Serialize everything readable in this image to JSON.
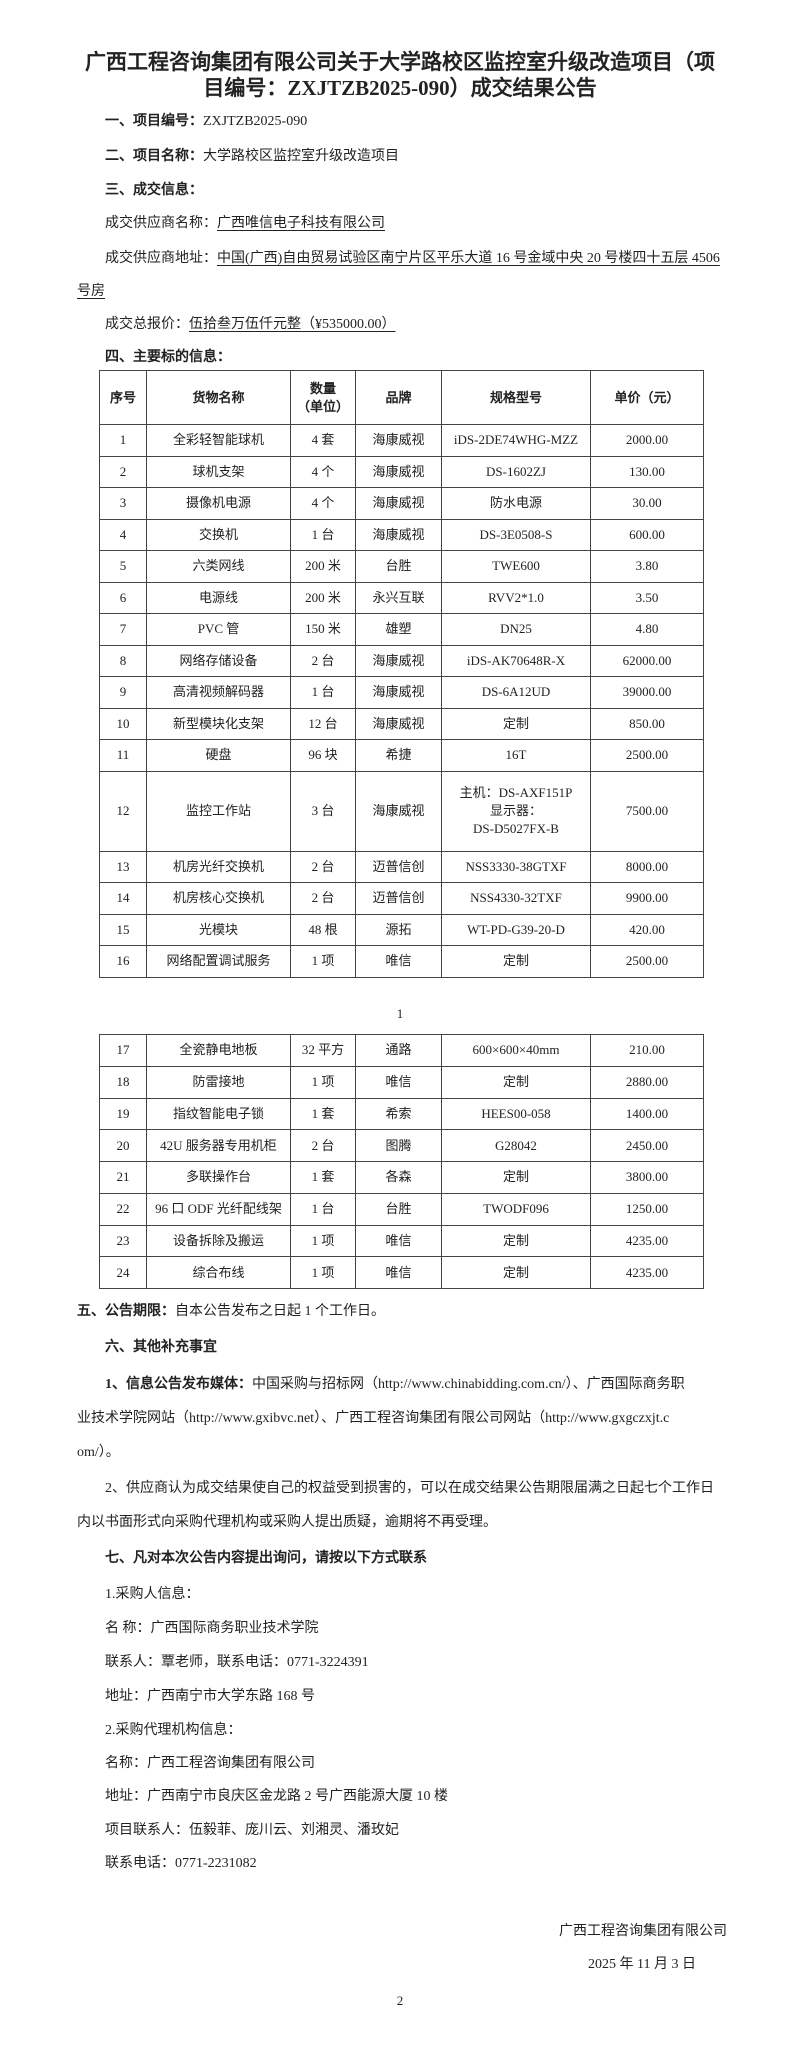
{
  "title": {
    "line1": "广西工程咨询集团有限公司关于大学路校区监控室升级改造项目（项",
    "line2": "目编号：ZXJTZB2025-090）成交结果公告"
  },
  "sections": {
    "project_no_label": "一、项目编号：",
    "project_no": "ZXJTZB2025-090",
    "project_name_label": "二、项目名称：",
    "project_name": "大学路校区监控室升级改造项目",
    "deal_info": "三、成交信息：",
    "supplier_name_label": "成交供应商名称：",
    "supplier_name": "广西唯信电子科技有限公司",
    "supplier_addr_label": "成交供应商地址：",
    "supplier_addr_line1": "中国(广西)自由贸易试验区南宁片区平乐大道 16 号金域中央 20 号楼四十五层 4506",
    "supplier_addr_line2": "号房",
    "total_price_label": "成交总报价：",
    "total_price": "伍拾叁万伍仟元整（¥535000.00）",
    "main_info": "四、主要标的信息："
  },
  "table": {
    "headers": [
      "序号",
      "货物名称",
      "数量\n（单位）",
      "品牌",
      "规格型号",
      "单价（元）"
    ],
    "rows_page1": [
      [
        "1",
        "全彩轻智能球机",
        "4 套",
        "海康威视",
        "iDS-2DE74WHG-MZZ",
        "2000.00"
      ],
      [
        "2",
        "球机支架",
        "4 个",
        "海康威视",
        "DS-1602ZJ",
        "130.00"
      ],
      [
        "3",
        "摄像机电源",
        "4 个",
        "海康威视",
        "防水电源",
        "30.00"
      ],
      [
        "4",
        "交换机",
        "1 台",
        "海康威视",
        "DS-3E0508-S",
        "600.00"
      ],
      [
        "5",
        "六类网线",
        "200 米",
        "台胜",
        "TWE600",
        "3.80"
      ],
      [
        "6",
        "电源线",
        "200 米",
        "永兴互联",
        "RVV2*1.0",
        "3.50"
      ],
      [
        "7",
        "PVC 管",
        "150 米",
        "雄塑",
        "DN25",
        "4.80"
      ],
      [
        "8",
        "网络存储设备",
        "2 台",
        "海康威视",
        "iDS-AK70648R-X",
        "62000.00"
      ],
      [
        "9",
        "高清视频解码器",
        "1 台",
        "海康威视",
        "DS-6A12UD",
        "39000.00"
      ],
      [
        "10",
        "新型模块化支架",
        "12 台",
        "海康威视",
        "定制",
        "850.00"
      ],
      [
        "11",
        "硬盘",
        "96 块",
        "希捷",
        "16T",
        "2500.00"
      ],
      [
        "12",
        "监控工作站",
        "3 台",
        "海康威视",
        "主机：DS-AXF151P\n显示器：\nDS-D5027FX-B",
        "7500.00"
      ],
      [
        "13",
        "机房光纤交换机",
        "2 台",
        "迈普信创",
        "NSS3330-38GTXF",
        "8000.00"
      ],
      [
        "14",
        "机房核心交换机",
        "2 台",
        "迈普信创",
        "NSS4330-32TXF",
        "9900.00"
      ],
      [
        "15",
        "光模块",
        "48 根",
        "源拓",
        "WT-PD-G39-20-D",
        "420.00"
      ],
      [
        "16",
        "网络配置调试服务",
        "1 项",
        "唯信",
        "定制",
        "2500.00"
      ]
    ],
    "rows_page2": [
      [
        "17",
        "全瓷静电地板",
        "32 平方",
        "通路",
        "600×600×40mm",
        "210.00"
      ],
      [
        "18",
        "防雷接地",
        "1 项",
        "唯信",
        "定制",
        "2880.00"
      ],
      [
        "19",
        "指纹智能电子锁",
        "1 套",
        "希索",
        "HEES00-058",
        "1400.00"
      ],
      [
        "20",
        "42U 服务器专用机柜",
        "2 台",
        "图腾",
        "G28042",
        "2450.00"
      ],
      [
        "21",
        "多联操作台",
        "1 套",
        "各森",
        "定制",
        "3800.00"
      ],
      [
        "22",
        "96 口 ODF 光纤配线架",
        "1 台",
        "台胜",
        "TWODF096",
        "1250.00"
      ],
      [
        "23",
        "设备拆除及搬运",
        "1 项",
        "唯信",
        "定制",
        "4235.00"
      ],
      [
        "24",
        "综合布线",
        "1 项",
        "唯信",
        "定制",
        "4235.00"
      ]
    ]
  },
  "page_numbers": {
    "first": "1",
    "second": "2"
  },
  "period": {
    "label": "五、公告期限：",
    "text": "自本公告发布之日起 1 个工作日。"
  },
  "other": {
    "heading": "六、其他补充事宜",
    "media_label": "1、信息公告发布媒体：",
    "media_line1": "中国采购与招标网（http://www.chinabidding.com.cn/）、广西国际商务职",
    "media_line2": "业技术学院网站（http://www.gxibvc.net）、广西工程咨询集团有限公司网站（http://www.gxgczxjt.c",
    "media_line3": "om/）。",
    "objection_line1": "2、供应商认为成交结果使自己的权益受到损害的，可以在成交结果公告期限届满之日起七个工作日",
    "objection_line2": "内以书面形式向采购代理机构或采购人提出质疑，逾期将不再受理。"
  },
  "contact": {
    "heading": "七、凡对本次公告内容提出询问，请按以下方式联系",
    "buyer_heading": "1.采购人信息：",
    "buyer_name": "名 称：广西国际商务职业技术学院",
    "buyer_contact": "联系人：覃老师，联系电话：0771-3224391",
    "buyer_addr": "地址：广西南宁市大学东路 168 号",
    "agent_heading": "2.采购代理机构信息：",
    "agent_name": "名称：广西工程咨询集团有限公司",
    "agent_addr": "地址：广西南宁市良庆区金龙路 2 号广西能源大厦 10 楼",
    "agent_people": "项目联系人：伍毅菲、庞川云、刘湘灵、潘玫妃",
    "agent_phone": "联系电话：0771-2231082"
  },
  "signature": {
    "company": "广西工程咨询集团有限公司",
    "date": "2025 年 11 月 3 日"
  }
}
